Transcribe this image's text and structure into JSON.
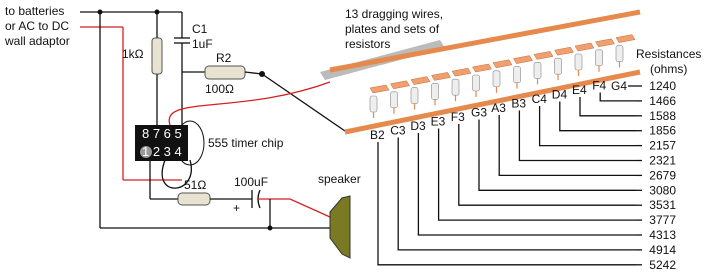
{
  "labels": {
    "power": [
      "to batteries",
      "or AC to DC",
      "wall adaptor"
    ],
    "c1_name": "C1",
    "c1_value": "1uF",
    "r1_value": "1kΩ",
    "r2_name": "R2",
    "r2_value": "100Ω",
    "board": [
      "13 dragging wires,",
      "plates and sets of",
      "resistors"
    ],
    "chip": "555 timer chip",
    "pins_top": "8 7 6 5",
    "pins_bottom": "1 2 3 4",
    "r3_value": "51Ω",
    "c2_value": "100uF",
    "c2_polarity": "+",
    "speaker": "speaker",
    "resistances_title": [
      "Resistances",
      "(ohms)"
    ]
  },
  "notes": [
    "B2",
    "C3",
    "D3",
    "E3",
    "F3",
    "G3",
    "A3",
    "B3",
    "C4",
    "D4",
    "E4",
    "F4",
    "G4"
  ],
  "resistances": [
    1240,
    1466,
    1588,
    1856,
    2157,
    2321,
    2679,
    3080,
    3531,
    3777,
    4313,
    4914,
    5242
  ]
}
